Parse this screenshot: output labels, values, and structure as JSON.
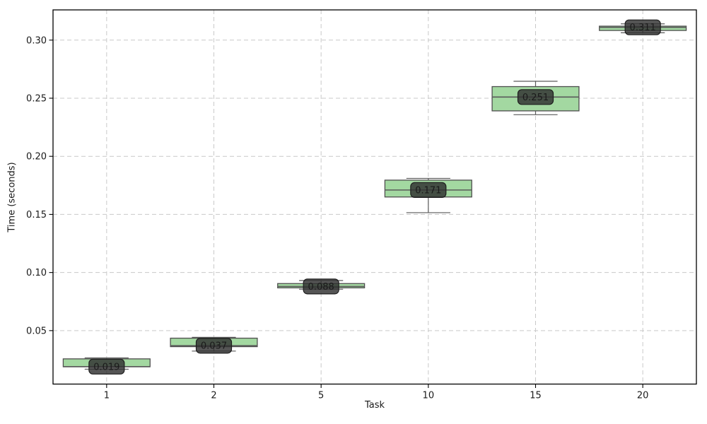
{
  "chart_data": {
    "type": "boxplot",
    "title": "",
    "xlabel": "Task",
    "ylabel": "Time (seconds)",
    "categories": [
      "1",
      "2",
      "5",
      "10",
      "15",
      "20"
    ],
    "ylim": [
      0.004,
      0.326
    ],
    "grid": true,
    "grid_style": "dashed",
    "yticks": [
      {
        "value": 0.05,
        "label": "0.05"
      },
      {
        "value": 0.1,
        "label": "0.10"
      },
      {
        "value": 0.15,
        "label": "0.15"
      },
      {
        "value": 0.2,
        "label": "0.20"
      },
      {
        "value": 0.25,
        "label": "0.25"
      },
      {
        "value": 0.3,
        "label": "0.30"
      }
    ],
    "boxes": [
      {
        "task": "1",
        "whisker_low": 0.0168,
        "q1": 0.0189,
        "median": 0.019,
        "q3": 0.0257,
        "whisker_high": 0.0265,
        "label": "0.019"
      },
      {
        "task": "2",
        "whisker_low": 0.0324,
        "q1": 0.0362,
        "median": 0.037,
        "q3": 0.0435,
        "whisker_high": 0.0442,
        "label": "0.037"
      },
      {
        "task": "5",
        "whisker_low": 0.0856,
        "q1": 0.0868,
        "median": 0.088,
        "q3": 0.0905,
        "whisker_high": 0.0931,
        "label": "0.088"
      },
      {
        "task": "10",
        "whisker_low": 0.1515,
        "q1": 0.165,
        "median": 0.171,
        "q3": 0.1795,
        "whisker_high": 0.181,
        "label": "0.171"
      },
      {
        "task": "15",
        "whisker_low": 0.2358,
        "q1": 0.2391,
        "median": 0.251,
        "q3": 0.26,
        "whisker_high": 0.2646,
        "label": "0.251"
      },
      {
        "task": "20",
        "whisker_low": 0.3063,
        "q1": 0.3083,
        "median": 0.311,
        "q3": 0.312,
        "whisker_high": 0.314,
        "label": "0.311"
      }
    ],
    "colors": {
      "background": "#ffffff",
      "box_fill": "#a3d8a1",
      "box_edge": "#4f4f4f",
      "whisker": "#5a5a5a",
      "median": "#5a5a5a",
      "grid": "#c9c9c9",
      "spine": "#000000",
      "tick_label": "#1a1a1a",
      "annotation_bg": "rgba(48,48,48,0.82)",
      "annotation_border": "#1e1e1e",
      "annotation_text": "#ffffff"
    }
  }
}
